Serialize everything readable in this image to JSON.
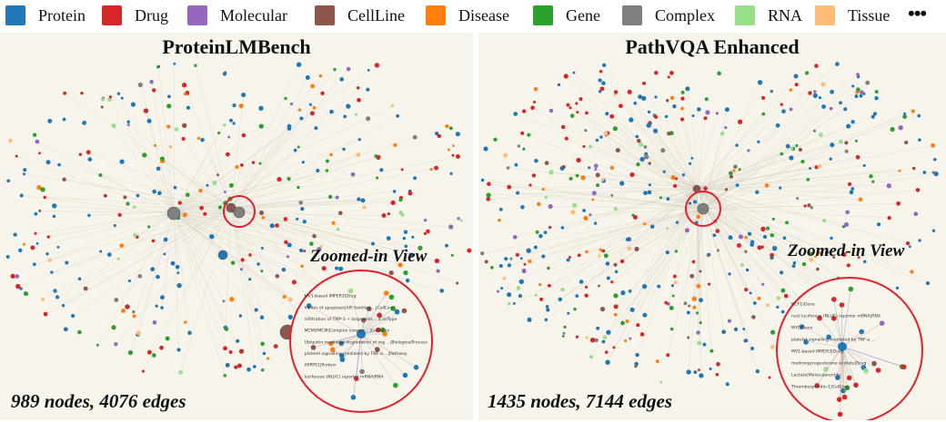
{
  "legend": {
    "items": [
      {
        "label": "Protein",
        "color": "#1f77b4"
      },
      {
        "label": "Drug",
        "color": "#d62728"
      },
      {
        "label": "Molecular",
        "color": "#9467bd"
      },
      {
        "label": "CellLine",
        "color": "#8c564b"
      },
      {
        "label": "Disease",
        "color": "#ff7f0e"
      },
      {
        "label": "Gene",
        "color": "#2ca02c"
      },
      {
        "label": "Complex",
        "color": "#7f7f7f"
      },
      {
        "label": "RNA",
        "color": "#98df8a"
      },
      {
        "label": "Tissue",
        "color": "#ffbb78"
      }
    ],
    "more": "•••"
  },
  "panels": [
    {
      "title": "ProteinLMBench",
      "stats": "989 nodes, 4076 edges",
      "zoom_label": "Zoomed-in View",
      "zoom_text": [
        "MV1-based IMPER3|Drug",
        "hibitor of apoptosis|API families ...|CellLine",
        "infiltration of TMP-3 + large cells ...|CellType",
        "MCMOMCM|Complex congen ...|Complex",
        "Ubiquitin-mediated degradation of reg ...|BiologicalProcess",
        "platelet signalling mediated by TNF-a ...|Pathway",
        "APPPS1|Protein",
        "luciferase (NLUC) reporter mRNA|RNA"
      ]
    },
    {
      "title": "PathVQA Enhanced",
      "stats": "1435 nodes, 7144 edges",
      "zoom_label": "Zoomed-in View",
      "zoom_text": [
        "NCF1|Gene",
        "nucl luciferase (NLUC) reporter mRNA|RNA",
        "MYC|Gene",
        "platelet signalling mediated by TNF-a ...",
        "MV1-based IMPER3|Drug",
        "medroxyprogesterone acetate|Drug",
        "Lactate|Molecularentity",
        "Thrombospondin-1|CellLine"
      ]
    }
  ]
}
